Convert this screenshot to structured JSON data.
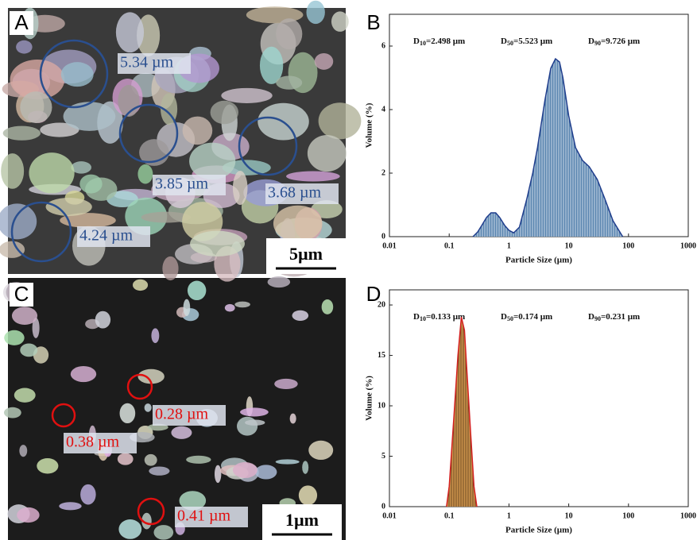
{
  "panels": [
    "A",
    "B",
    "C",
    "D"
  ],
  "images": [
    {
      "labels": [
        "5.34 µm",
        "3.85 µm",
        "3.68 µm",
        "4.24 µm"
      ],
      "scale_bar": "5µm"
    },
    {
      "labels": [
        "0.28 µm",
        "0.38 µm",
        "0.41 µm"
      ],
      "scale_bar": "1µm"
    }
  ],
  "chart_data": [
    {
      "type": "area",
      "x_label": "Particle Size (µm)",
      "y_label": "Volume (%)",
      "annotations": [
        {
          "label": "D",
          "sub": "10",
          "value": "=2.498 µm"
        },
        {
          "label": "D",
          "sub": "50",
          "value": "=5.523 µm"
        },
        {
          "label": "D",
          "sub": "90",
          "value": "=9.726 µm"
        }
      ],
      "x_scale": "log",
      "xlim": [
        0.01,
        1000
      ],
      "xticks": [
        0.01,
        0.1,
        1,
        10,
        100,
        1000
      ],
      "ylim": [
        0,
        7
      ],
      "yticks": [
        0,
        2,
        4,
        6
      ],
      "series": [
        {
          "color": "#1f3d8c",
          "fill": "#5b86b0",
          "x": [
            0.25,
            0.3,
            0.35,
            0.42,
            0.5,
            0.6,
            0.7,
            0.85,
            1,
            1.2,
            1.5,
            2,
            2.5,
            3,
            4,
            5,
            6,
            7,
            8,
            10,
            13,
            17,
            22,
            30,
            40,
            55,
            80
          ],
          "values": [
            0,
            0.15,
            0.35,
            0.6,
            0.75,
            0.75,
            0.6,
            0.35,
            0.2,
            0.12,
            0.3,
            1.2,
            2.0,
            2.8,
            4.3,
            5.3,
            5.6,
            5.5,
            5.0,
            3.8,
            2.8,
            2.4,
            2.2,
            1.8,
            1.2,
            0.5,
            0
          ]
        }
      ]
    },
    {
      "type": "area",
      "x_label": "Particle Size (µm)",
      "y_label": "Volume (%)",
      "annotations": [
        {
          "label": "D",
          "sub": "10",
          "value": "=0.133 µm"
        },
        {
          "label": "D",
          "sub": "50",
          "value": "=0.174 µm"
        },
        {
          "label": "D",
          "sub": "90",
          "value": "=0.231 µm"
        }
      ],
      "x_scale": "log",
      "xlim": [
        0.01,
        1000
      ],
      "xticks": [
        0.01,
        0.1,
        1,
        10,
        100,
        1000
      ],
      "ylim": [
        0,
        21.5
      ],
      "yticks": [
        0,
        5,
        10,
        15,
        20
      ],
      "series": [
        {
          "color": "#d42020",
          "fill": "#c8904a",
          "x": [
            0.09,
            0.1,
            0.12,
            0.14,
            0.16,
            0.18,
            0.2,
            0.23,
            0.26,
            0.29
          ],
          "values": [
            0,
            2,
            9,
            15,
            18.8,
            17.5,
            13,
            7,
            2,
            0
          ]
        }
      ]
    }
  ]
}
